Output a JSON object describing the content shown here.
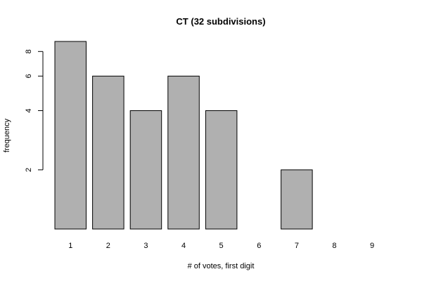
{
  "chart_data": {
    "type": "bar",
    "title": "CT (32 subdivisions)",
    "xlabel": "# of votes, first digit",
    "ylabel": "frequency",
    "categories": [
      "1",
      "2",
      "3",
      "4",
      "5",
      "6",
      "7",
      "8",
      "9"
    ],
    "values": [
      9,
      6,
      4,
      6,
      4,
      0,
      2,
      0,
      1
    ],
    "y_scale": "log",
    "y_ticks": [
      2,
      4,
      6,
      8
    ],
    "ylim": [
      1,
      9
    ],
    "bar_color": "#b0b0b0",
    "grid": false,
    "legend": "none"
  }
}
